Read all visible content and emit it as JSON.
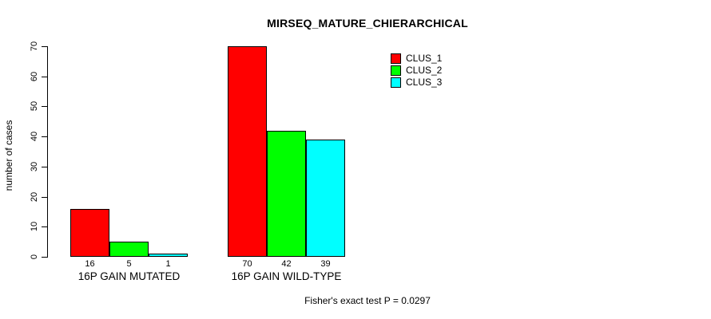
{
  "chart_data": {
    "type": "bar",
    "title": "MIRSEQ_MATURE_CHIERARCHICAL",
    "xlabel": "",
    "ylabel": "number of cases",
    "categories": [
      "16P GAIN MUTATED",
      "16P GAIN WILD-TYPE"
    ],
    "series": [
      {
        "name": "CLUS_1",
        "color": "#ff0000",
        "values": [
          16,
          70
        ]
      },
      {
        "name": "CLUS_2",
        "color": "#00ff00",
        "values": [
          5,
          42
        ]
      },
      {
        "name": "CLUS_3",
        "color": "#00ffff",
        "values": [
          1,
          39
        ]
      }
    ],
    "bar_value_labels": [
      [
        16,
        5,
        1
      ],
      [
        70,
        42,
        39
      ]
    ],
    "ylim": [
      0,
      70
    ],
    "yticks": [
      0,
      10,
      20,
      30,
      40,
      50,
      60,
      70
    ],
    "grid": false,
    "legend_position": "top-right",
    "annotation": "Fisher's exact test P = 0.0297",
    "axis_color": "#000000",
    "background_color": "#ffffff"
  }
}
